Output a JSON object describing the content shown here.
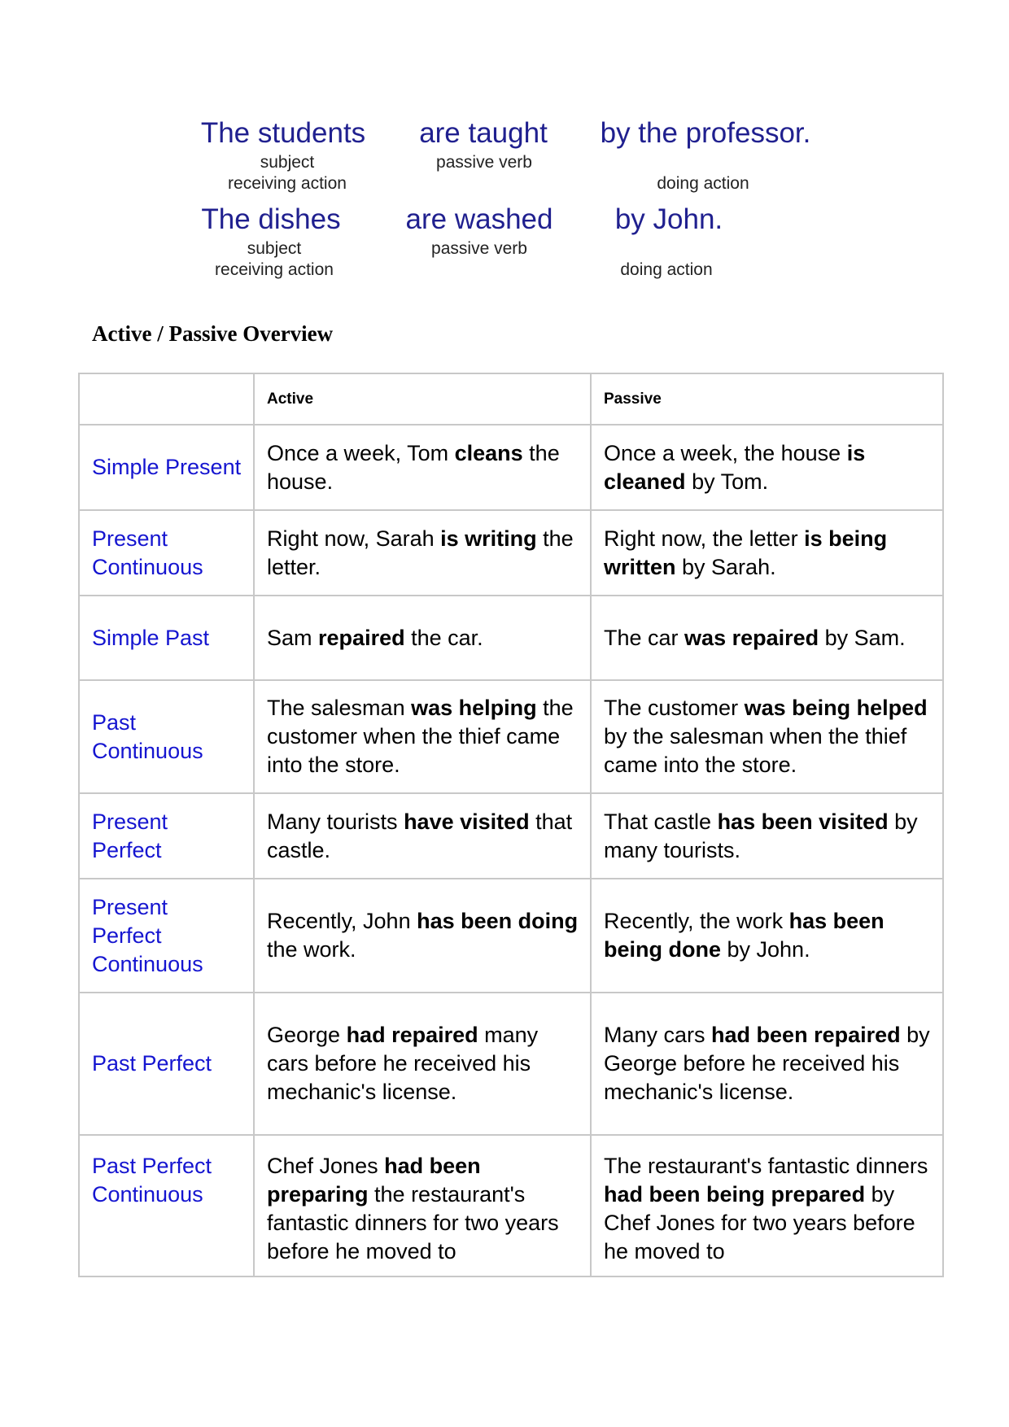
{
  "diagram": {
    "sentences": [
      {
        "subject": "The students",
        "verb": "are  taught",
        "agent": "by the professor.",
        "subject_label1": "subject",
        "subject_label2": "receiving action",
        "verb_label": "passive verb",
        "agent_label": "doing action"
      },
      {
        "subject": "The dishes",
        "verb": "are washed",
        "agent": "by John.",
        "subject_label1": "subject",
        "subject_label2": "receiving action",
        "verb_label": "passive verb",
        "agent_label": "doing action"
      }
    ]
  },
  "title": "Active / Passive Overview",
  "table": {
    "headers": [
      "",
      "Active",
      "Passive"
    ],
    "rows": [
      {
        "tense": "Simple Present",
        "active": [
          {
            "t": "Once a week, Tom "
          },
          {
            "t": "cleans",
            "b": true
          },
          {
            "t": " the house."
          }
        ],
        "passive": [
          {
            "t": "Once a week, the house "
          },
          {
            "t": "is cleaned",
            "b": true
          },
          {
            "t": " by Tom."
          }
        ]
      },
      {
        "tense": "Present Continuous",
        "active": [
          {
            "t": "Right now, Sarah "
          },
          {
            "t": "is writing",
            "b": true
          },
          {
            "t": " the letter."
          }
        ],
        "passive": [
          {
            "t": "Right now, the letter "
          },
          {
            "t": "is being written",
            "b": true
          },
          {
            "t": " by Sarah."
          }
        ]
      },
      {
        "tense": "Simple Past",
        "active": [
          {
            "t": "Sam "
          },
          {
            "t": "repaired",
            "b": true
          },
          {
            "t": " the car."
          }
        ],
        "passive": [
          {
            "t": "The car "
          },
          {
            "t": "was repaired",
            "b": true
          },
          {
            "t": " by Sam."
          }
        ]
      },
      {
        "tense": "Past Continuous",
        "active": [
          {
            "t": "The salesman "
          },
          {
            "t": "was helping",
            "b": true
          },
          {
            "t": " the customer when the thief came into the store."
          }
        ],
        "passive": [
          {
            "t": "The customer "
          },
          {
            "t": "was being helped",
            "b": true
          },
          {
            "t": " by the salesman when the thief came into the store."
          }
        ]
      },
      {
        "tense": "Present Perfect",
        "active": [
          {
            "t": "Many tourists "
          },
          {
            "t": "have visited",
            "b": true
          },
          {
            "t": " that castle."
          }
        ],
        "passive": [
          {
            "t": "That castle "
          },
          {
            "t": "has been visited",
            "b": true
          },
          {
            "t": " by many tourists."
          }
        ]
      },
      {
        "tense": "Present Perfect Continuous",
        "active": [
          {
            "t": "Recently, John "
          },
          {
            "t": "has been doing",
            "b": true
          },
          {
            "t": " the work."
          }
        ],
        "passive": [
          {
            "t": "Recently, the work "
          },
          {
            "t": "has been being done",
            "b": true
          },
          {
            "t": " by John."
          }
        ]
      },
      {
        "tense": "Past Perfect",
        "active": [
          {
            "t": "George "
          },
          {
            "t": "had repaired",
            "b": true
          },
          {
            "t": " many cars before he received his mechanic's license."
          }
        ],
        "passive": [
          {
            "t": "Many cars "
          },
          {
            "t": "had been repaired",
            "b": true
          },
          {
            "t": " by George before he received his mechanic's license."
          }
        ]
      },
      {
        "tense": "Past Perfect Continuous",
        "active": [
          {
            "t": "Chef Jones "
          },
          {
            "t": "had been preparing",
            "b": true
          },
          {
            "t": " the restaurant's fantastic dinners for two years before he moved to"
          }
        ],
        "passive": [
          {
            "t": "The restaurant's fantastic dinners "
          },
          {
            "t": "had been being prepared",
            "b": true
          },
          {
            "t": " by Chef Jones for two years before he moved to"
          }
        ]
      }
    ]
  },
  "colors": {
    "diagram_text": "#20208f",
    "tense_text": "#1515d0",
    "border": "#c8c8c8"
  }
}
